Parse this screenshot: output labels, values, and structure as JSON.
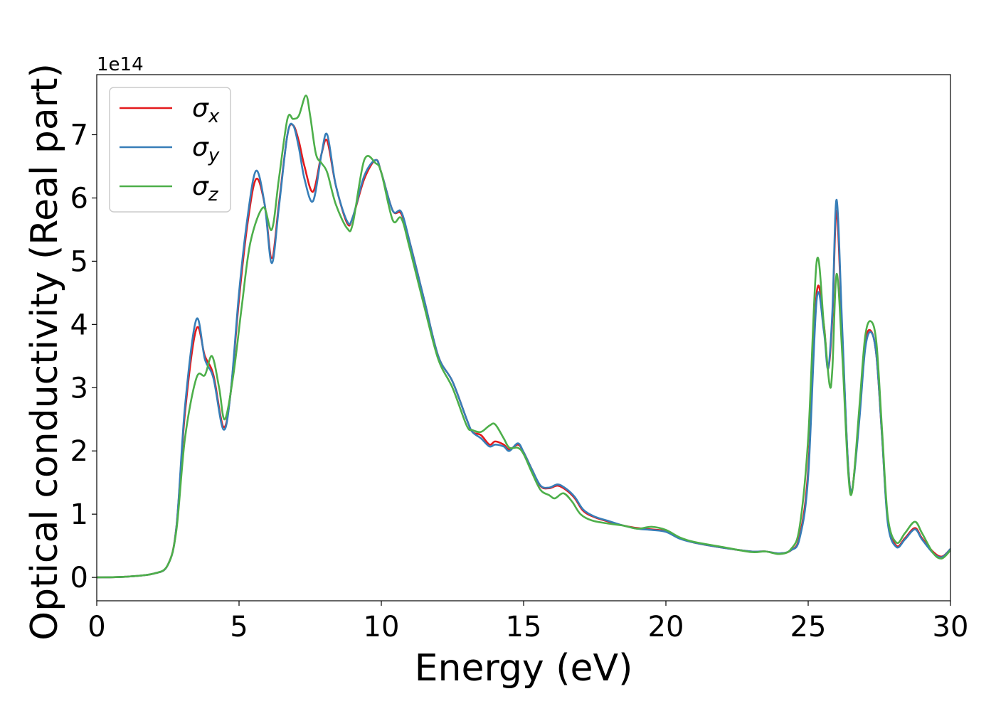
{
  "chart_data": {
    "type": "line",
    "xlabel": "Energy (eV)",
    "ylabel": "Optical conductivity (Real part)",
    "y_offset_text": "1e14",
    "y_multiplier": 100000000000000.0,
    "xlim": [
      0,
      30
    ],
    "ylim": [
      -0.37,
      7.95
    ],
    "xticks": [
      0,
      5,
      10,
      15,
      20,
      25,
      30
    ],
    "yticks": [
      0,
      1,
      2,
      3,
      4,
      5,
      6,
      7
    ],
    "grid": false,
    "legend_position": "upper-left",
    "series": [
      {
        "name": "σx",
        "name_base": "σ",
        "name_sub": "x",
        "color": "#e41a1c",
        "points": [
          [
            0,
            0
          ],
          [
            1,
            0.01
          ],
          [
            2,
            0.06
          ],
          [
            2.5,
            0.2
          ],
          [
            2.8,
            0.8
          ],
          [
            3.1,
            2.6
          ],
          [
            3.5,
            3.93
          ],
          [
            3.8,
            3.5
          ],
          [
            4.1,
            3.2
          ],
          [
            4.45,
            2.38
          ],
          [
            4.7,
            2.9
          ],
          [
            5.0,
            4.4
          ],
          [
            5.3,
            5.6
          ],
          [
            5.6,
            6.3
          ],
          [
            5.9,
            5.9
          ],
          [
            6.15,
            5.05
          ],
          [
            6.4,
            5.9
          ],
          [
            6.7,
            7.0
          ],
          [
            6.9,
            7.15
          ],
          [
            7.1,
            6.9
          ],
          [
            7.3,
            6.5
          ],
          [
            7.6,
            6.1
          ],
          [
            7.9,
            6.7
          ],
          [
            8.1,
            6.9
          ],
          [
            8.4,
            6.2
          ],
          [
            8.8,
            5.6
          ],
          [
            9.0,
            5.7
          ],
          [
            9.4,
            6.3
          ],
          [
            9.8,
            6.6
          ],
          [
            10.0,
            6.4
          ],
          [
            10.4,
            5.8
          ],
          [
            10.7,
            5.75
          ],
          [
            11.0,
            5.3
          ],
          [
            11.5,
            4.4
          ],
          [
            12.0,
            3.5
          ],
          [
            12.5,
            3.1
          ],
          [
            13.0,
            2.5
          ],
          [
            13.2,
            2.3
          ],
          [
            13.5,
            2.25
          ],
          [
            13.8,
            2.1
          ],
          [
            14.0,
            2.15
          ],
          [
            14.3,
            2.1
          ],
          [
            14.5,
            2.02
          ],
          [
            14.8,
            2.1
          ],
          [
            15.0,
            1.98
          ],
          [
            15.3,
            1.7
          ],
          [
            15.6,
            1.44
          ],
          [
            15.9,
            1.41
          ],
          [
            16.2,
            1.45
          ],
          [
            16.5,
            1.38
          ],
          [
            16.8,
            1.25
          ],
          [
            17.1,
            1.05
          ],
          [
            17.5,
            0.95
          ],
          [
            18.0,
            0.88
          ],
          [
            18.5,
            0.82
          ],
          [
            19.0,
            0.78
          ],
          [
            19.5,
            0.76
          ],
          [
            20.0,
            0.73
          ],
          [
            20.5,
            0.62
          ],
          [
            21.0,
            0.55
          ],
          [
            22.0,
            0.47
          ],
          [
            23.0,
            0.41
          ],
          [
            23.5,
            0.41
          ],
          [
            24.0,
            0.38
          ],
          [
            24.4,
            0.43
          ],
          [
            24.7,
            0.65
          ],
          [
            25.0,
            1.7
          ],
          [
            25.3,
            4.5
          ],
          [
            25.55,
            4.0
          ],
          [
            25.7,
            3.3
          ],
          [
            25.85,
            4.1
          ],
          [
            26.0,
            5.8
          ],
          [
            26.2,
            3.8
          ],
          [
            26.4,
            1.8
          ],
          [
            26.55,
            1.4
          ],
          [
            26.8,
            2.6
          ],
          [
            27.0,
            3.7
          ],
          [
            27.2,
            3.9
          ],
          [
            27.4,
            3.5
          ],
          [
            27.6,
            2.2
          ],
          [
            27.8,
            0.9
          ],
          [
            28.1,
            0.5
          ],
          [
            28.4,
            0.62
          ],
          [
            28.75,
            0.78
          ],
          [
            29.0,
            0.62
          ],
          [
            29.4,
            0.4
          ],
          [
            29.7,
            0.33
          ],
          [
            30.0,
            0.45
          ]
        ]
      },
      {
        "name": "σy",
        "name_base": "σ",
        "name_sub": "y",
        "color": "#377eb8",
        "points": [
          [
            0,
            0
          ],
          [
            1,
            0.01
          ],
          [
            2,
            0.06
          ],
          [
            2.5,
            0.2
          ],
          [
            2.8,
            0.8
          ],
          [
            3.1,
            2.7
          ],
          [
            3.5,
            4.08
          ],
          [
            3.8,
            3.45
          ],
          [
            4.1,
            3.15
          ],
          [
            4.45,
            2.34
          ],
          [
            4.7,
            2.9
          ],
          [
            5.0,
            4.5
          ],
          [
            5.3,
            5.7
          ],
          [
            5.6,
            6.43
          ],
          [
            5.9,
            5.9
          ],
          [
            6.15,
            4.97
          ],
          [
            6.4,
            5.85
          ],
          [
            6.7,
            7.0
          ],
          [
            6.9,
            7.15
          ],
          [
            7.1,
            6.8
          ],
          [
            7.3,
            6.3
          ],
          [
            7.6,
            5.95
          ],
          [
            7.9,
            6.7
          ],
          [
            8.1,
            7.0
          ],
          [
            8.4,
            6.2
          ],
          [
            8.8,
            5.63
          ],
          [
            9.0,
            5.7
          ],
          [
            9.4,
            6.35
          ],
          [
            9.8,
            6.6
          ],
          [
            10.0,
            6.4
          ],
          [
            10.4,
            5.8
          ],
          [
            10.7,
            5.78
          ],
          [
            11.0,
            5.3
          ],
          [
            11.5,
            4.4
          ],
          [
            12.0,
            3.5
          ],
          [
            12.5,
            3.1
          ],
          [
            13.0,
            2.5
          ],
          [
            13.2,
            2.3
          ],
          [
            13.5,
            2.2
          ],
          [
            13.8,
            2.07
          ],
          [
            14.0,
            2.1
          ],
          [
            14.3,
            2.07
          ],
          [
            14.5,
            2.0
          ],
          [
            14.8,
            2.12
          ],
          [
            15.0,
            1.98
          ],
          [
            15.3,
            1.7
          ],
          [
            15.6,
            1.45
          ],
          [
            15.9,
            1.42
          ],
          [
            16.2,
            1.47
          ],
          [
            16.5,
            1.4
          ],
          [
            16.8,
            1.27
          ],
          [
            17.1,
            1.07
          ],
          [
            17.5,
            0.96
          ],
          [
            18.0,
            0.89
          ],
          [
            18.5,
            0.82
          ],
          [
            19.0,
            0.77
          ],
          [
            19.5,
            0.75
          ],
          [
            20.0,
            0.72
          ],
          [
            20.5,
            0.61
          ],
          [
            21.0,
            0.55
          ],
          [
            22.0,
            0.47
          ],
          [
            23.0,
            0.41
          ],
          [
            23.5,
            0.41
          ],
          [
            24.0,
            0.38
          ],
          [
            24.4,
            0.43
          ],
          [
            24.7,
            0.62
          ],
          [
            25.0,
            1.6
          ],
          [
            25.3,
            4.4
          ],
          [
            25.55,
            3.9
          ],
          [
            25.7,
            3.3
          ],
          [
            25.85,
            4.2
          ],
          [
            26.0,
            5.97
          ],
          [
            26.2,
            3.9
          ],
          [
            26.4,
            1.8
          ],
          [
            26.55,
            1.4
          ],
          [
            26.8,
            2.5
          ],
          [
            27.0,
            3.6
          ],
          [
            27.2,
            3.88
          ],
          [
            27.4,
            3.5
          ],
          [
            27.6,
            2.2
          ],
          [
            27.8,
            0.85
          ],
          [
            28.1,
            0.48
          ],
          [
            28.4,
            0.6
          ],
          [
            28.75,
            0.76
          ],
          [
            29.0,
            0.6
          ],
          [
            29.4,
            0.38
          ],
          [
            29.7,
            0.32
          ],
          [
            30.0,
            0.45
          ]
        ]
      },
      {
        "name": "σz",
        "name_base": "σ",
        "name_sub": "z",
        "color": "#4daf4a",
        "points": [
          [
            0,
            0
          ],
          [
            1,
            0.01
          ],
          [
            2,
            0.06
          ],
          [
            2.5,
            0.2
          ],
          [
            2.8,
            0.75
          ],
          [
            3.1,
            2.2
          ],
          [
            3.5,
            3.15
          ],
          [
            3.8,
            3.2
          ],
          [
            4.05,
            3.5
          ],
          [
            4.3,
            3.0
          ],
          [
            4.5,
            2.5
          ],
          [
            4.8,
            3.2
          ],
          [
            5.1,
            4.3
          ],
          [
            5.4,
            5.3
          ],
          [
            5.85,
            5.85
          ],
          [
            6.15,
            5.5
          ],
          [
            6.4,
            6.3
          ],
          [
            6.7,
            7.25
          ],
          [
            6.9,
            7.25
          ],
          [
            7.1,
            7.3
          ],
          [
            7.35,
            7.62
          ],
          [
            7.5,
            7.3
          ],
          [
            7.7,
            6.7
          ],
          [
            7.9,
            6.55
          ],
          [
            8.1,
            6.4
          ],
          [
            8.4,
            5.9
          ],
          [
            8.8,
            5.52
          ],
          [
            9.0,
            5.6
          ],
          [
            9.4,
            6.6
          ],
          [
            9.8,
            6.55
          ],
          [
            10.0,
            6.4
          ],
          [
            10.4,
            5.65
          ],
          [
            10.7,
            5.68
          ],
          [
            11.0,
            5.2
          ],
          [
            11.5,
            4.3
          ],
          [
            12.0,
            3.45
          ],
          [
            12.5,
            3.0
          ],
          [
            13.0,
            2.4
          ],
          [
            13.2,
            2.33
          ],
          [
            13.5,
            2.3
          ],
          [
            13.8,
            2.4
          ],
          [
            14.0,
            2.42
          ],
          [
            14.3,
            2.2
          ],
          [
            14.5,
            2.05
          ],
          [
            14.8,
            2.05
          ],
          [
            15.0,
            1.95
          ],
          [
            15.3,
            1.65
          ],
          [
            15.6,
            1.38
          ],
          [
            15.9,
            1.3
          ],
          [
            16.1,
            1.25
          ],
          [
            16.4,
            1.33
          ],
          [
            16.7,
            1.2
          ],
          [
            17.0,
            1.0
          ],
          [
            17.4,
            0.9
          ],
          [
            18.0,
            0.85
          ],
          [
            18.5,
            0.82
          ],
          [
            19.0,
            0.77
          ],
          [
            19.5,
            0.8
          ],
          [
            20.0,
            0.75
          ],
          [
            20.5,
            0.63
          ],
          [
            21.0,
            0.56
          ],
          [
            22.0,
            0.48
          ],
          [
            23.0,
            0.4
          ],
          [
            23.5,
            0.41
          ],
          [
            24.0,
            0.37
          ],
          [
            24.4,
            0.45
          ],
          [
            24.7,
            0.8
          ],
          [
            25.0,
            2.2
          ],
          [
            25.3,
            5.0
          ],
          [
            25.55,
            4.0
          ],
          [
            25.75,
            3.05
          ],
          [
            25.85,
            3.3
          ],
          [
            26.0,
            4.8
          ],
          [
            26.2,
            3.5
          ],
          [
            26.4,
            1.7
          ],
          [
            26.55,
            1.37
          ],
          [
            26.8,
            2.7
          ],
          [
            27.0,
            3.8
          ],
          [
            27.2,
            4.05
          ],
          [
            27.4,
            3.7
          ],
          [
            27.6,
            2.3
          ],
          [
            27.8,
            0.95
          ],
          [
            28.1,
            0.55
          ],
          [
            28.4,
            0.7
          ],
          [
            28.75,
            0.88
          ],
          [
            29.0,
            0.7
          ],
          [
            29.4,
            0.38
          ],
          [
            29.7,
            0.3
          ],
          [
            30.0,
            0.43
          ]
        ]
      }
    ]
  }
}
